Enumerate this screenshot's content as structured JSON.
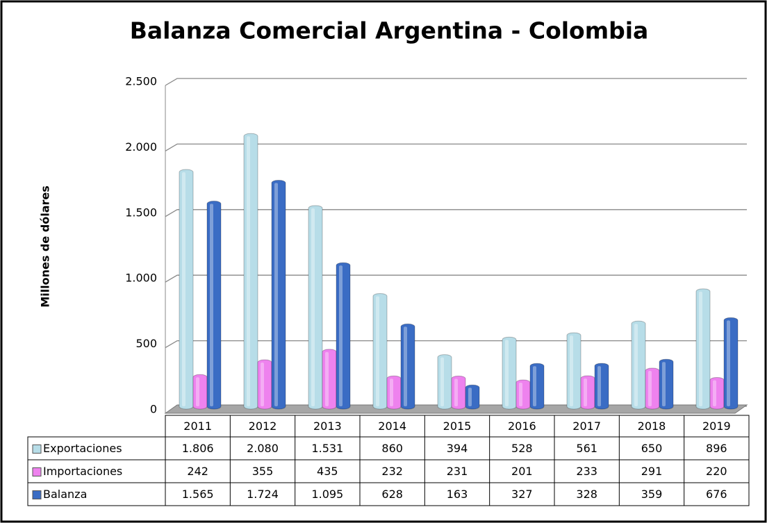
{
  "chart_data": {
    "type": "bar",
    "title": "Balanza Comercial Argentina - Colombia",
    "y_label": "Millones de dólares",
    "categories": [
      "2011",
      "2012",
      "2013",
      "2014",
      "2015",
      "2016",
      "2017",
      "2018",
      "2019"
    ],
    "series": [
      {
        "name": "Exportaciones",
        "color": "#b7dde8",
        "values": [
          1806,
          2080,
          1531,
          860,
          394,
          528,
          561,
          650,
          896
        ],
        "value_labels": [
          "1.806",
          "2.080",
          "1.531",
          "860",
          "394",
          "528",
          "561",
          "650",
          "896"
        ]
      },
      {
        "name": "Importaciones",
        "color": "#ee82ee",
        "values": [
          242,
          355,
          435,
          232,
          231,
          201,
          233,
          291,
          220
        ],
        "value_labels": [
          "242",
          "355",
          "435",
          "232",
          "231",
          "201",
          "233",
          "291",
          "220"
        ]
      },
      {
        "name": "Balanza",
        "color": "#3a6cc4",
        "values": [
          1565,
          1724,
          1095,
          628,
          163,
          327,
          328,
          359,
          676
        ],
        "value_labels": [
          "1.565",
          "1.724",
          "1.095",
          "628",
          "163",
          "327",
          "328",
          "359",
          "676"
        ]
      }
    ],
    "ylim": [
      0,
      2500
    ],
    "yticks": [
      0,
      500,
      {
        "value": 1000,
        "label": "1.000"
      },
      {
        "value": 1500,
        "label": "1.500"
      },
      {
        "value": 2000,
        "label": "2.000"
      },
      {
        "value": 2500,
        "label": "2.500"
      }
    ],
    "grid": true
  }
}
